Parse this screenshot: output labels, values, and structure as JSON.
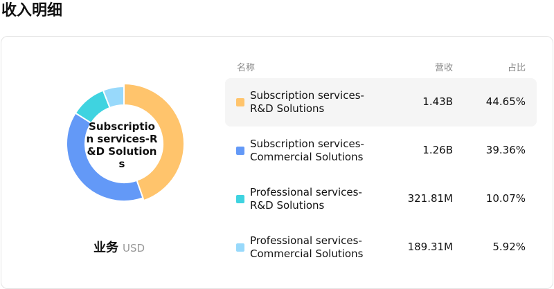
{
  "header": {
    "title": "收入明细"
  },
  "chart_data": {
    "type": "pie",
    "donut": true,
    "categories": [
      "Subscription services-R&D Solutions",
      "Subscription services-Commercial Solutions",
      "Professional services-R&D Solutions",
      "Professional services-Commercial Solutions"
    ],
    "values": [
      44.65,
      39.36,
      10.07,
      5.92
    ],
    "value_labels": [
      "44.65%",
      "39.36%",
      "10.07%",
      "5.92%"
    ],
    "revenue_labels": [
      "1.43B",
      "1.26B",
      "321.81M",
      "189.31M"
    ],
    "colors": [
      "#ffc46c",
      "#6399f7",
      "#3fd3e0",
      "#98d9fb"
    ],
    "highlight": 0
  },
  "footer": {
    "label": "业务",
    "unit": "USD"
  },
  "table": {
    "columns": [
      "名称",
      "营收",
      "占比"
    ]
  }
}
